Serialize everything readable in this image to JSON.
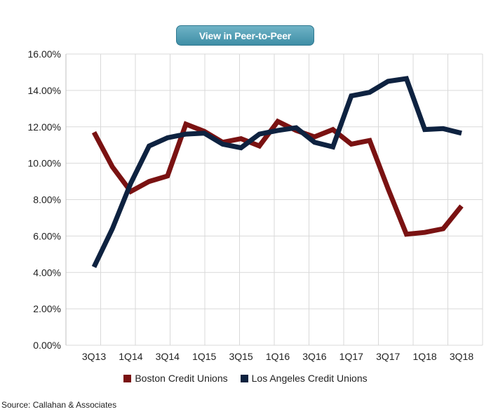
{
  "header": {
    "button_label": "View in Peer-to-Peer"
  },
  "chart_data": {
    "type": "line",
    "x": [
      "3Q13",
      "4Q13",
      "1Q14",
      "2Q14",
      "3Q14",
      "4Q14",
      "1Q15",
      "2Q15",
      "3Q15",
      "4Q15",
      "1Q16",
      "2Q16",
      "3Q16",
      "4Q16",
      "1Q17",
      "2Q17",
      "3Q17",
      "4Q17",
      "1Q18",
      "2Q18",
      "3Q18"
    ],
    "tick_labels": [
      "3Q13",
      "1Q14",
      "3Q14",
      "1Q15",
      "3Q15",
      "1Q16",
      "3Q16",
      "1Q17",
      "3Q17",
      "1Q18",
      "3Q18"
    ],
    "series": [
      {
        "name": "Boston Credit Unions",
        "color": "#7a1212",
        "values": [
          11.7,
          9.8,
          8.45,
          9.0,
          9.3,
          12.15,
          11.75,
          11.15,
          11.35,
          10.95,
          12.3,
          11.8,
          11.45,
          11.85,
          11.05,
          11.25,
          8.6,
          6.1,
          6.2,
          6.4,
          7.65
        ]
      },
      {
        "name": "Los Angeles Credit Unions",
        "color": "#0e2240",
        "values": [
          4.3,
          6.4,
          8.9,
          10.95,
          11.4,
          11.6,
          11.65,
          11.05,
          10.85,
          11.6,
          11.8,
          11.95,
          11.15,
          10.9,
          13.7,
          13.9,
          14.5,
          14.65,
          11.85,
          11.9,
          11.65
        ]
      }
    ],
    "yaxis": {
      "ticks": [
        0,
        2,
        4,
        6,
        8,
        10,
        12,
        14,
        16
      ],
      "tick_format": "percent_2dp"
    },
    "ylim": [
      0,
      16
    ],
    "grid": true,
    "legend": {
      "placement": "bottom"
    }
  },
  "footer": {
    "source": "Source: Callahan & Associates"
  }
}
